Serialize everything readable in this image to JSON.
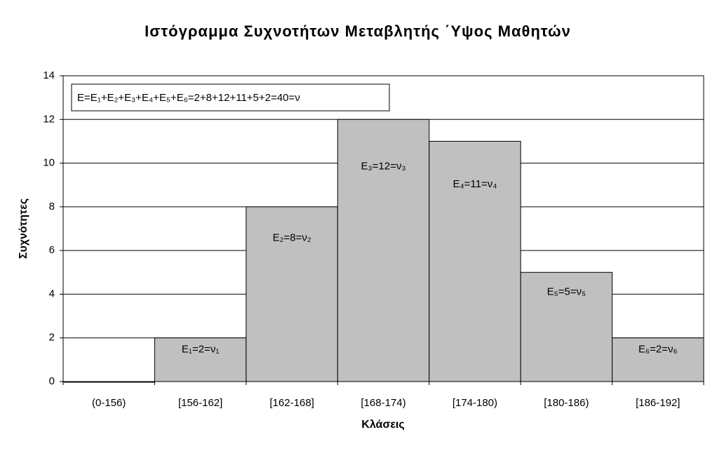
{
  "chart_data": {
    "type": "bar",
    "title": "Ιστόγραμμα Συχνοτήτων Μεταβλητής ΄Υψος Μαθητών",
    "x_label": "Κλάσεις",
    "y_label": "Συχνότητες",
    "annotation": "E=E₁+E₂+E₃+E₄+E₅+E₆=2+8+12+11+5+2=40=ν",
    "categories": [
      "(0-156)",
      "[156-162]",
      "[162-168]",
      "[168-174)",
      "[174-180)",
      "[180-186)",
      "[186-192]"
    ],
    "values": [
      0,
      2,
      8,
      12,
      11,
      5,
      2
    ],
    "value_labels": [
      null,
      "E₁=2=ν₁",
      "E₂=8=ν₂",
      "E₃=12=ν₃",
      "E₄=11=ν₄",
      "E₅=5=ν₅",
      "E₆=2=ν₆"
    ],
    "color": "#c0c0c0",
    "ylim": [
      0,
      14
    ],
    "yticks": [
      0,
      2,
      4,
      6,
      8,
      10,
      12,
      14
    ],
    "grid": true
  }
}
